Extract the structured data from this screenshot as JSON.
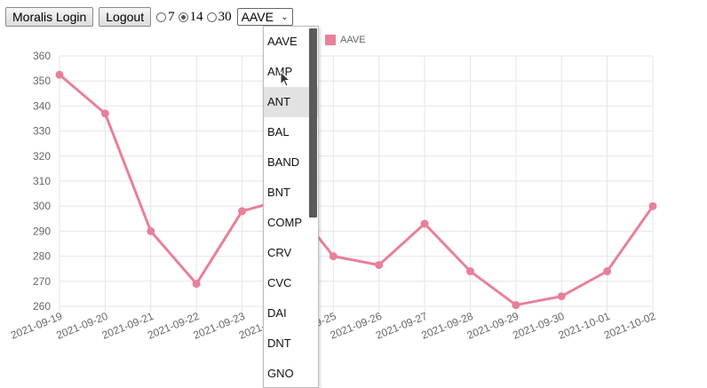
{
  "toolbar": {
    "login_label": "Moralis Login",
    "logout_label": "Logout",
    "radios": [
      {
        "label": "7",
        "checked": false
      },
      {
        "label": "14",
        "checked": true
      },
      {
        "label": "30",
        "checked": false
      }
    ],
    "select_value": "AAVE"
  },
  "dropdown": {
    "options": [
      "AAVE",
      "AMP",
      "ANT",
      "BAL",
      "BAND",
      "BNT",
      "COMP",
      "CRV",
      "CVC",
      "DAI",
      "DNT",
      "GNO"
    ],
    "hovered": "ANT"
  },
  "chart_data": {
    "type": "line",
    "x": [
      "2021-09-19",
      "2021-09-20",
      "2021-09-21",
      "2021-09-22",
      "2021-09-23",
      "2021-09-24",
      "2021-09-25",
      "2021-09-26",
      "2021-09-27",
      "2021-09-28",
      "2021-09-29",
      "2021-09-30",
      "2021-10-01",
      "2021-10-02"
    ],
    "series": [
      {
        "name": "AAVE",
        "values": [
          352.5,
          337,
          290,
          269,
          298,
          303,
          280,
          276.5,
          293,
          274,
          260.5,
          264,
          274,
          300
        ],
        "color": "#e8809a"
      }
    ],
    "ylim": [
      260,
      360
    ],
    "yticks": [
      260,
      270,
      280,
      290,
      300,
      310,
      320,
      330,
      340,
      350,
      360
    ],
    "grid": true,
    "legend": "top"
  }
}
